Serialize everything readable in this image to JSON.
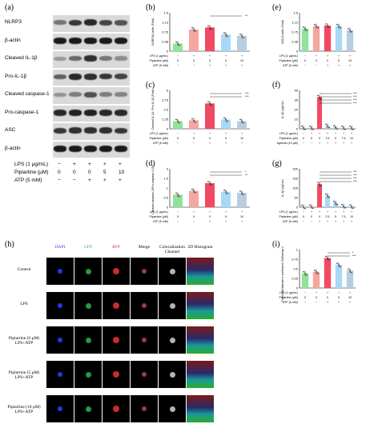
{
  "panels": {
    "a": "(a)",
    "b": "(b)",
    "c": "(c)",
    "d": "(d)",
    "e": "(e)",
    "f": "(f)",
    "g": "(g)",
    "h": "(h)",
    "i": "(i)"
  },
  "western_blot": {
    "bands": [
      "NLRP3",
      "β-actin",
      "Cleaved IL-1β",
      "Pro-IL-1β",
      "Cleaved caspase-1",
      "Pro-caspase-1",
      "ASC",
      "β-actin"
    ],
    "conditions": [
      {
        "label": "LPS (1 μg/mL)",
        "values": [
          "−",
          "+",
          "+",
          "+",
          "+"
        ]
      },
      {
        "label": "Piplartine (μM)",
        "values": [
          "0",
          "0",
          "0",
          "5",
          "10"
        ]
      },
      {
        "label": "ATP (5 mM)",
        "values": [
          "−",
          "−",
          "+",
          "+",
          "+"
        ]
      }
    ]
  },
  "small_axis": {
    "lps": "LPS (1 μg/mL)",
    "pip": "Piplartine (μM)",
    "atp": "ATP (5 mM)",
    "nig": "Nigericin (10 μM)"
  },
  "microscopy": {
    "channels": [
      "DAPI",
      "GFP",
      "RFP",
      "Merge",
      "Colocalization Channel",
      "2D Histogram"
    ],
    "rows": [
      "Control",
      "LPS",
      "Piplartine (0 μM) LPS+ATP",
      "Piplartine (5 μM) LPS+ATP",
      "Piplartine (10 μM) LPS+ATP"
    ]
  },
  "chart_data": [
    {
      "id": "b",
      "type": "bar",
      "ylabel": "NLRP3/β-actin (Fold)",
      "ylim": [
        0,
        1.5
      ],
      "conditions": {
        "lps": [
          "−",
          "+",
          "+",
          "+",
          "+"
        ],
        "pip": [
          "0",
          "0",
          "0",
          "5",
          "10"
        ],
        "atp": [
          "−",
          "−",
          "+",
          "+",
          "+"
        ]
      },
      "values": [
        0.3,
        0.85,
        0.93,
        0.65,
        0.6
      ],
      "colors": [
        "#90e39a",
        "#f4a7a0",
        "#f04a64",
        "#a8d8f5",
        "#b8cde0"
      ],
      "significance": [
        "**"
      ]
    },
    {
      "id": "c",
      "type": "bar",
      "ylabel": "Cleaved IL-1β / Pro-IL-1β (Fold)",
      "ylim": [
        0,
        5
      ],
      "conditions": {
        "lps": [
          "−",
          "+",
          "+",
          "+",
          "+"
        ],
        "pip": [
          "0",
          "0",
          "0",
          "5",
          "10"
        ],
        "atp": [
          "−",
          "−",
          "+",
          "+",
          "+"
        ]
      },
      "values": [
        1.0,
        1.1,
        3.3,
        1.2,
        1.0
      ],
      "colors": [
        "#90e39a",
        "#f4a7a0",
        "#f04a64",
        "#a8d8f5",
        "#b8cde0"
      ],
      "significance": [
        "***",
        "***"
      ]
    },
    {
      "id": "d",
      "type": "bar",
      "ylabel": "Cleaved caspase-1/Pro-caspase-1 (Fold)",
      "ylim": [
        0,
        2
      ],
      "conditions": {
        "lps": [
          "−",
          "+",
          "+",
          "+",
          "+"
        ],
        "pip": [
          "0",
          "0",
          "0",
          "5",
          "10"
        ],
        "atp": [
          "−",
          "−",
          "+",
          "+",
          "+"
        ]
      },
      "values": [
        0.65,
        0.85,
        1.25,
        0.8,
        0.75
      ],
      "colors": [
        "#90e39a",
        "#f4a7a0",
        "#f04a64",
        "#a8d8f5",
        "#b8cde0"
      ],
      "significance": [
        "*",
        "**"
      ]
    },
    {
      "id": "e",
      "type": "bar",
      "ylabel": "ASC/β-actin (Fold)",
      "ylim": [
        0,
        1.5
      ],
      "conditions": {
        "lps": [
          "−",
          "+",
          "+",
          "+",
          "+"
        ],
        "pip": [
          "0",
          "0",
          "0",
          "5",
          "10"
        ],
        "atp": [
          "−",
          "−",
          "+",
          "+",
          "+"
        ]
      },
      "values": [
        0.88,
        0.98,
        1.0,
        0.98,
        0.82
      ],
      "colors": [
        "#90e39a",
        "#f4a7a0",
        "#f04a64",
        "#a8d8f5",
        "#b8cde0"
      ],
      "significance": []
    },
    {
      "id": "f",
      "type": "bar",
      "ylabel": "IL-1β (pg/mL)",
      "ylim": [
        0,
        40
      ],
      "conditions": {
        "lps": [
          "−",
          "+",
          "+",
          "+",
          "+",
          "+",
          "+"
        ],
        "pip": [
          "0",
          "0",
          "0",
          "2.5",
          "5",
          "7.5",
          "10"
        ],
        "nig": [
          "−",
          "−",
          "+",
          "+",
          "+",
          "+",
          "+"
        ]
      },
      "values": [
        1,
        1,
        33,
        3,
        1.5,
        1,
        1
      ],
      "colors": [
        "#90e39a",
        "#f4a7a0",
        "#f04a64",
        "#a8d8f5",
        "#a8d8f5",
        "#a8d8f5",
        "#b8cde0"
      ],
      "significance": [
        "***",
        "***",
        "***",
        "***"
      ]
    },
    {
      "id": "g",
      "type": "bar",
      "ylabel": "IL-1β (pg/mL)",
      "ylim": [
        0,
        200
      ],
      "conditions": {
        "lps": [
          "−",
          "+",
          "+",
          "+",
          "+",
          "+",
          "+"
        ],
        "pip": [
          "0",
          "0",
          "0",
          "2.5",
          "5",
          "7.5",
          "10"
        ],
        "atp": [
          "−",
          "−",
          "+",
          "+",
          "+",
          "+",
          "+"
        ]
      },
      "values": [
        2,
        3,
        120,
        60,
        22,
        5,
        3
      ],
      "colors": [
        "#90e39a",
        "#f4a7a0",
        "#f04a64",
        "#a8d8f5",
        "#a8d8f5",
        "#a8d8f5",
        "#b8cde0"
      ],
      "significance": [
        "***",
        "***",
        "***",
        "***"
      ]
    },
    {
      "id": "i",
      "type": "bar",
      "ylabel": "Threshold Mander's coefficient (%Overlap with Ch2)",
      "ylim": [
        0,
        1.0
      ],
      "conditions": {
        "lps": [
          "−",
          "+",
          "+",
          "+",
          "+"
        ],
        "pip": [
          "0",
          "0",
          "0",
          "5",
          "10"
        ],
        "atp": [
          "−",
          "−",
          "+",
          "+",
          "+"
        ]
      },
      "values": [
        0.38,
        0.42,
        0.78,
        0.6,
        0.45
      ],
      "colors": [
        "#90e39a",
        "#f4a7a0",
        "#f04a64",
        "#a8d8f5",
        "#b8cde0"
      ],
      "significance": [
        "*",
        "***"
      ]
    }
  ]
}
